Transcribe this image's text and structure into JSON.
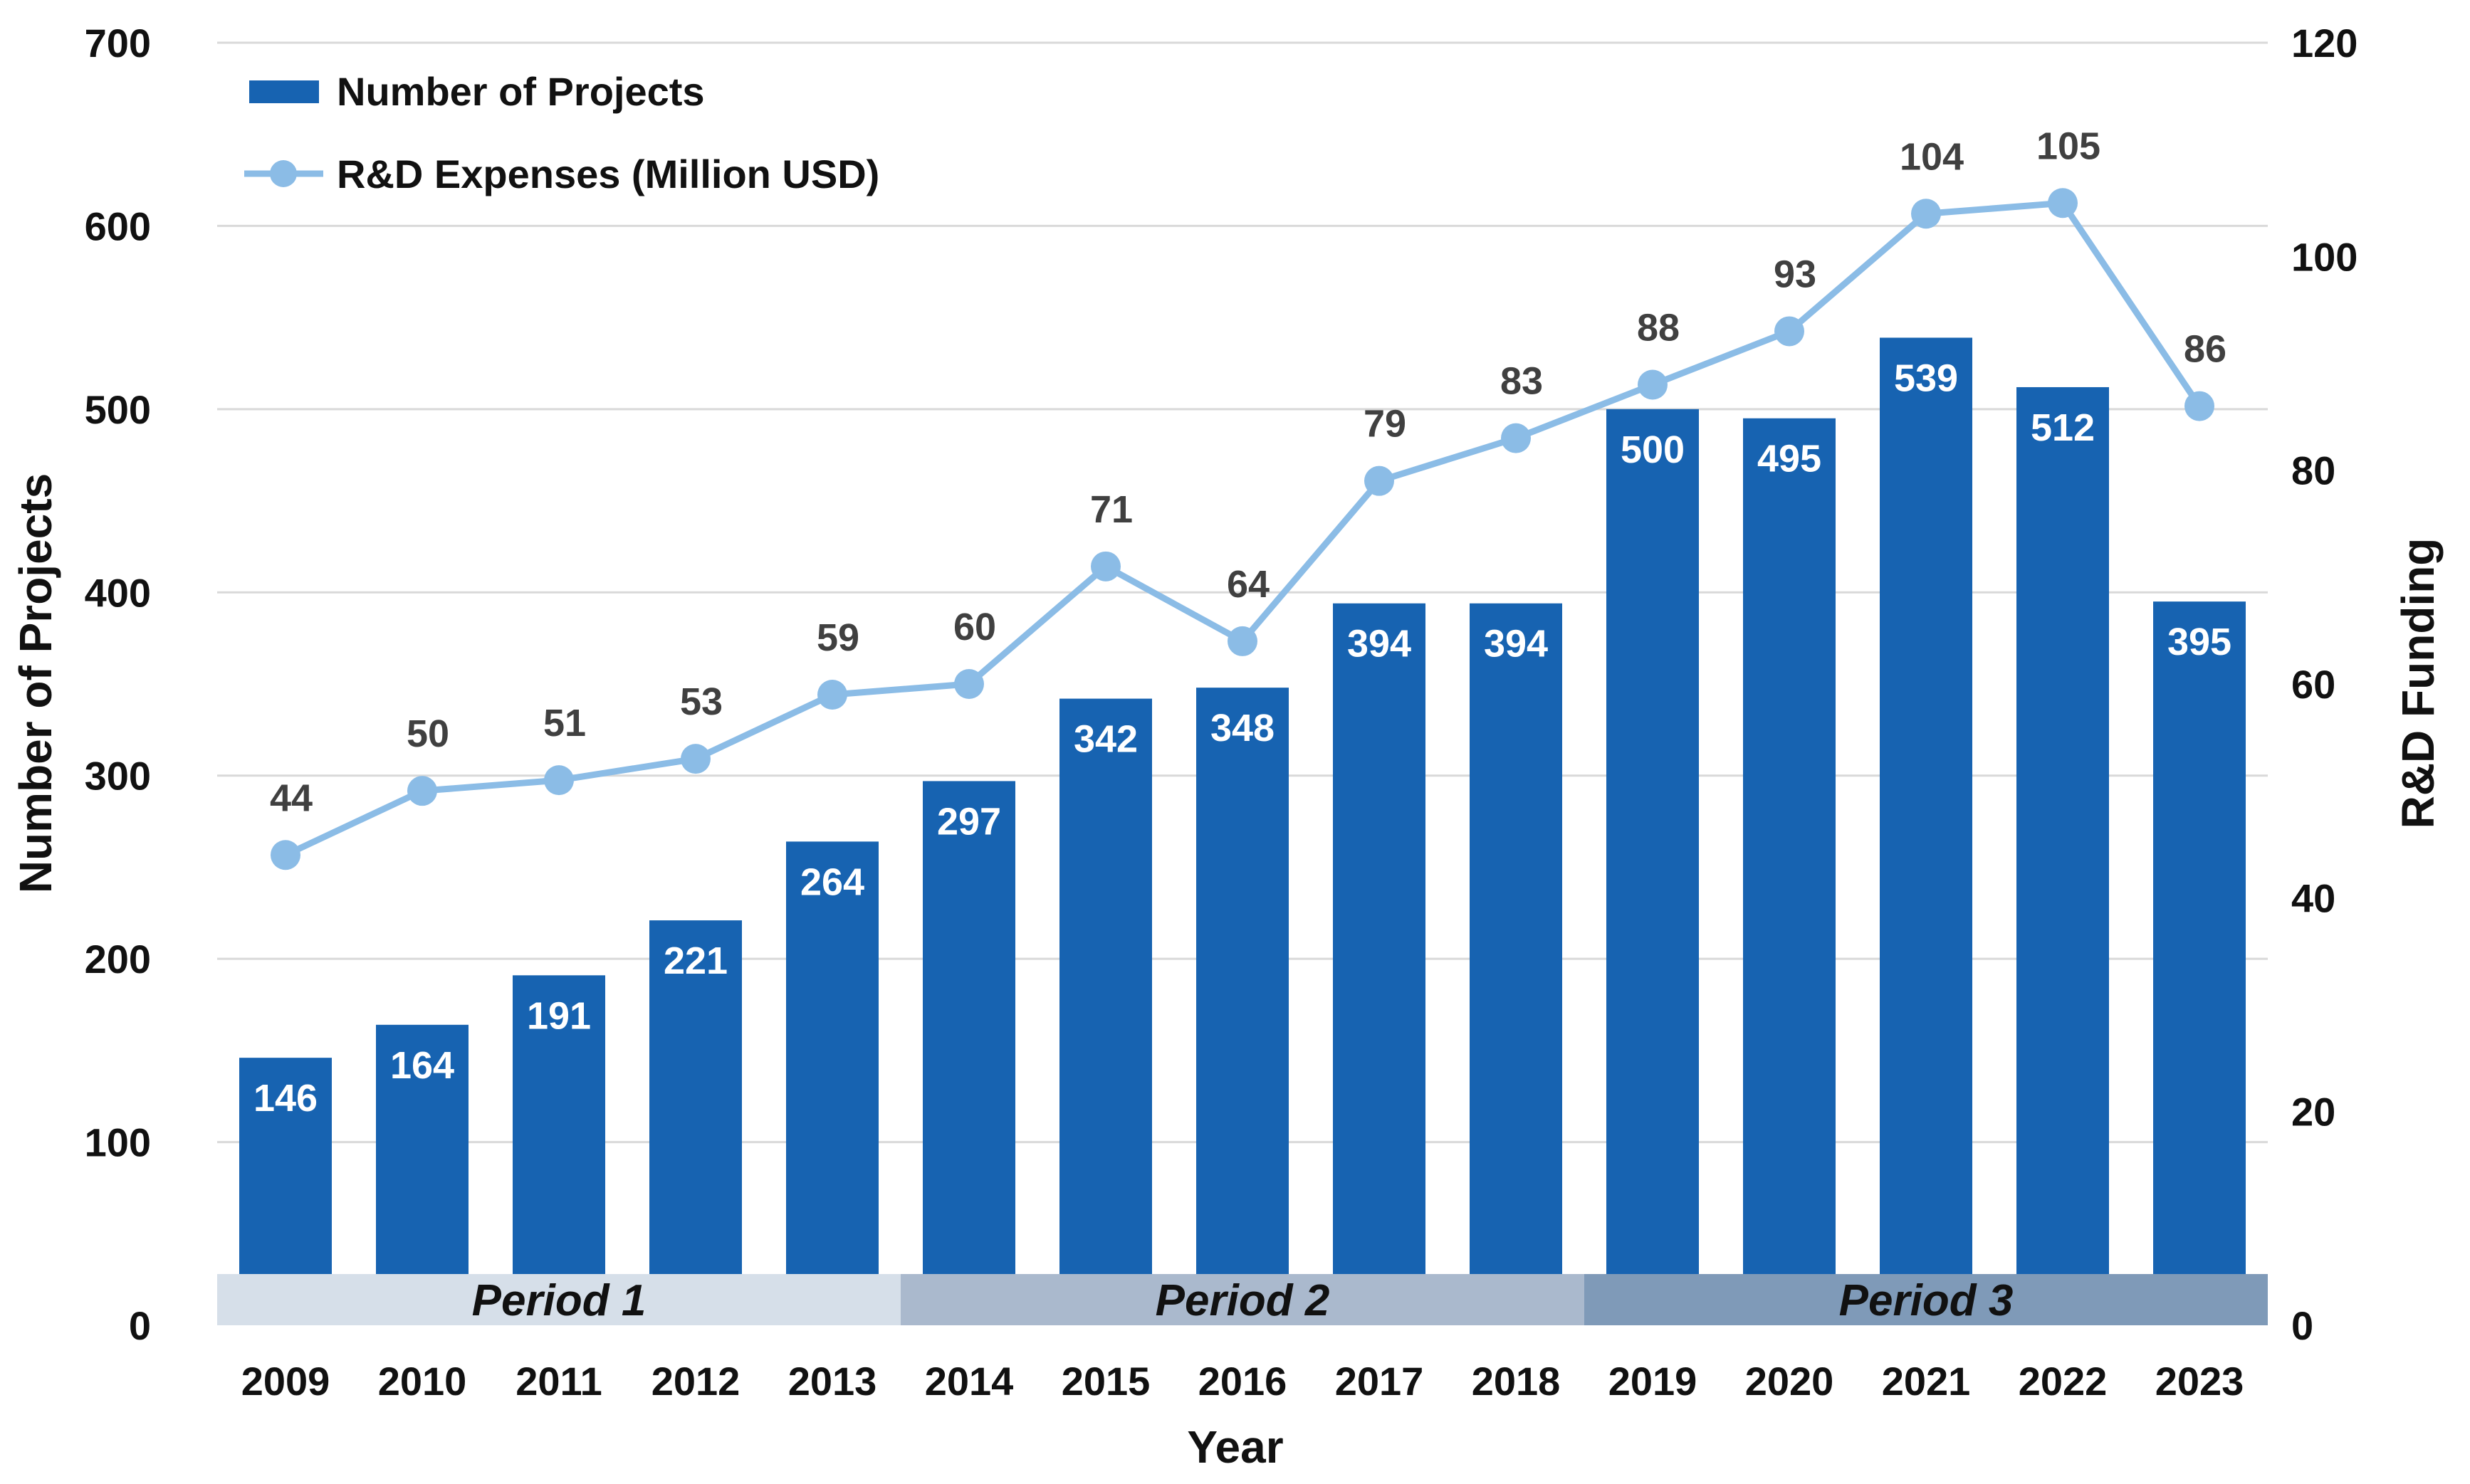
{
  "chart_data": {
    "type": "bar",
    "title": "",
    "xlabel": "Year",
    "ylabel": "Number of Projects",
    "y2label": "R&D Funding",
    "categories": [
      "2009",
      "2010",
      "2011",
      "2012",
      "2013",
      "2014",
      "2015",
      "2016",
      "2017",
      "2018",
      "2019",
      "2020",
      "2021",
      "2022",
      "2023"
    ],
    "ylim": [
      0,
      700
    ],
    "yticks": [
      "0",
      "100",
      "200",
      "300",
      "400",
      "500",
      "600",
      "700"
    ],
    "y2lim": [
      0,
      120
    ],
    "y2ticks": [
      "0",
      "20",
      "40",
      "60",
      "80",
      "100",
      "120"
    ],
    "grid": true,
    "legend_position": "top-left",
    "series": [
      {
        "name": "Number of Projects",
        "type": "bar",
        "axis": "left",
        "color": "#1763b1",
        "values": [
          146,
          164,
          191,
          221,
          264,
          297,
          342,
          348,
          394,
          394,
          500,
          495,
          539,
          512,
          395
        ]
      },
      {
        "name": "R&D Expenses (Million USD)",
        "type": "line",
        "axis": "right",
        "color": "#8bbce6",
        "values": [
          44,
          50,
          51,
          53,
          59,
          60,
          71,
          64,
          79,
          83,
          88,
          93,
          104,
          105,
          86
        ]
      }
    ],
    "periods": [
      {
        "label": "Period 1",
        "from": "2009",
        "to": "2013",
        "color": "#d6dfe9"
      },
      {
        "label": "Period 2",
        "from": "2014",
        "to": "2018",
        "color": "#aab9cd"
      },
      {
        "label": "Period 3",
        "from": "2019",
        "to": "2023",
        "color": "#7f9ab8"
      }
    ]
  }
}
